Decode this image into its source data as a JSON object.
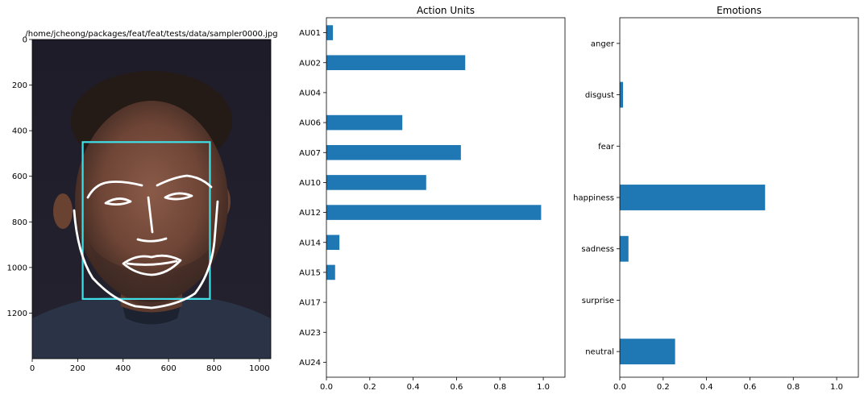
{
  "image_panel": {
    "title": "/home/jcheong/packages/feat/feat/tests/data/sampler0000.jpg",
    "xlim": [
      0,
      1050
    ],
    "ylim": [
      1400,
      0
    ],
    "xticks": [
      "0",
      "200",
      "400",
      "600",
      "800",
      "1000"
    ],
    "yticks": [
      "0",
      "200",
      "400",
      "600",
      "800",
      "1000",
      "1200"
    ],
    "face_box": {
      "x0": 222,
      "y0": 450,
      "x1": 782,
      "y1": 1138
    },
    "box_color": "#40e0e8",
    "landmark_color": "#ffffff"
  },
  "chart_data": [
    {
      "type": "bar",
      "orientation": "horizontal",
      "title": "Action Units",
      "categories": [
        "AU01",
        "AU02",
        "AU04",
        "AU06",
        "AU07",
        "AU10",
        "AU12",
        "AU14",
        "AU15",
        "AU17",
        "AU23",
        "AU24"
      ],
      "values": [
        0.03,
        0.64,
        0.0,
        0.35,
        0.62,
        0.46,
        0.99,
        0.06,
        0.04,
        0.0,
        0.0,
        0.0
      ],
      "xlim": [
        0,
        1.1
      ],
      "xticks": [
        "0.0",
        "0.2",
        "0.4",
        "0.6",
        "0.8",
        "1.0"
      ],
      "color": "#1f77b4",
      "grid": false
    },
    {
      "type": "bar",
      "orientation": "horizontal",
      "title": "Emotions",
      "categories": [
        "anger",
        "disgust",
        "fear",
        "happiness",
        "sadness",
        "surprise",
        "neutral"
      ],
      "values": [
        0.0,
        0.015,
        0.0,
        0.67,
        0.04,
        0.0,
        0.255
      ],
      "xlim": [
        0,
        1.1
      ],
      "xticks": [
        "0.0",
        "0.2",
        "0.4",
        "0.6",
        "0.8",
        "1.0"
      ],
      "color": "#1f77b4",
      "grid": false
    }
  ]
}
